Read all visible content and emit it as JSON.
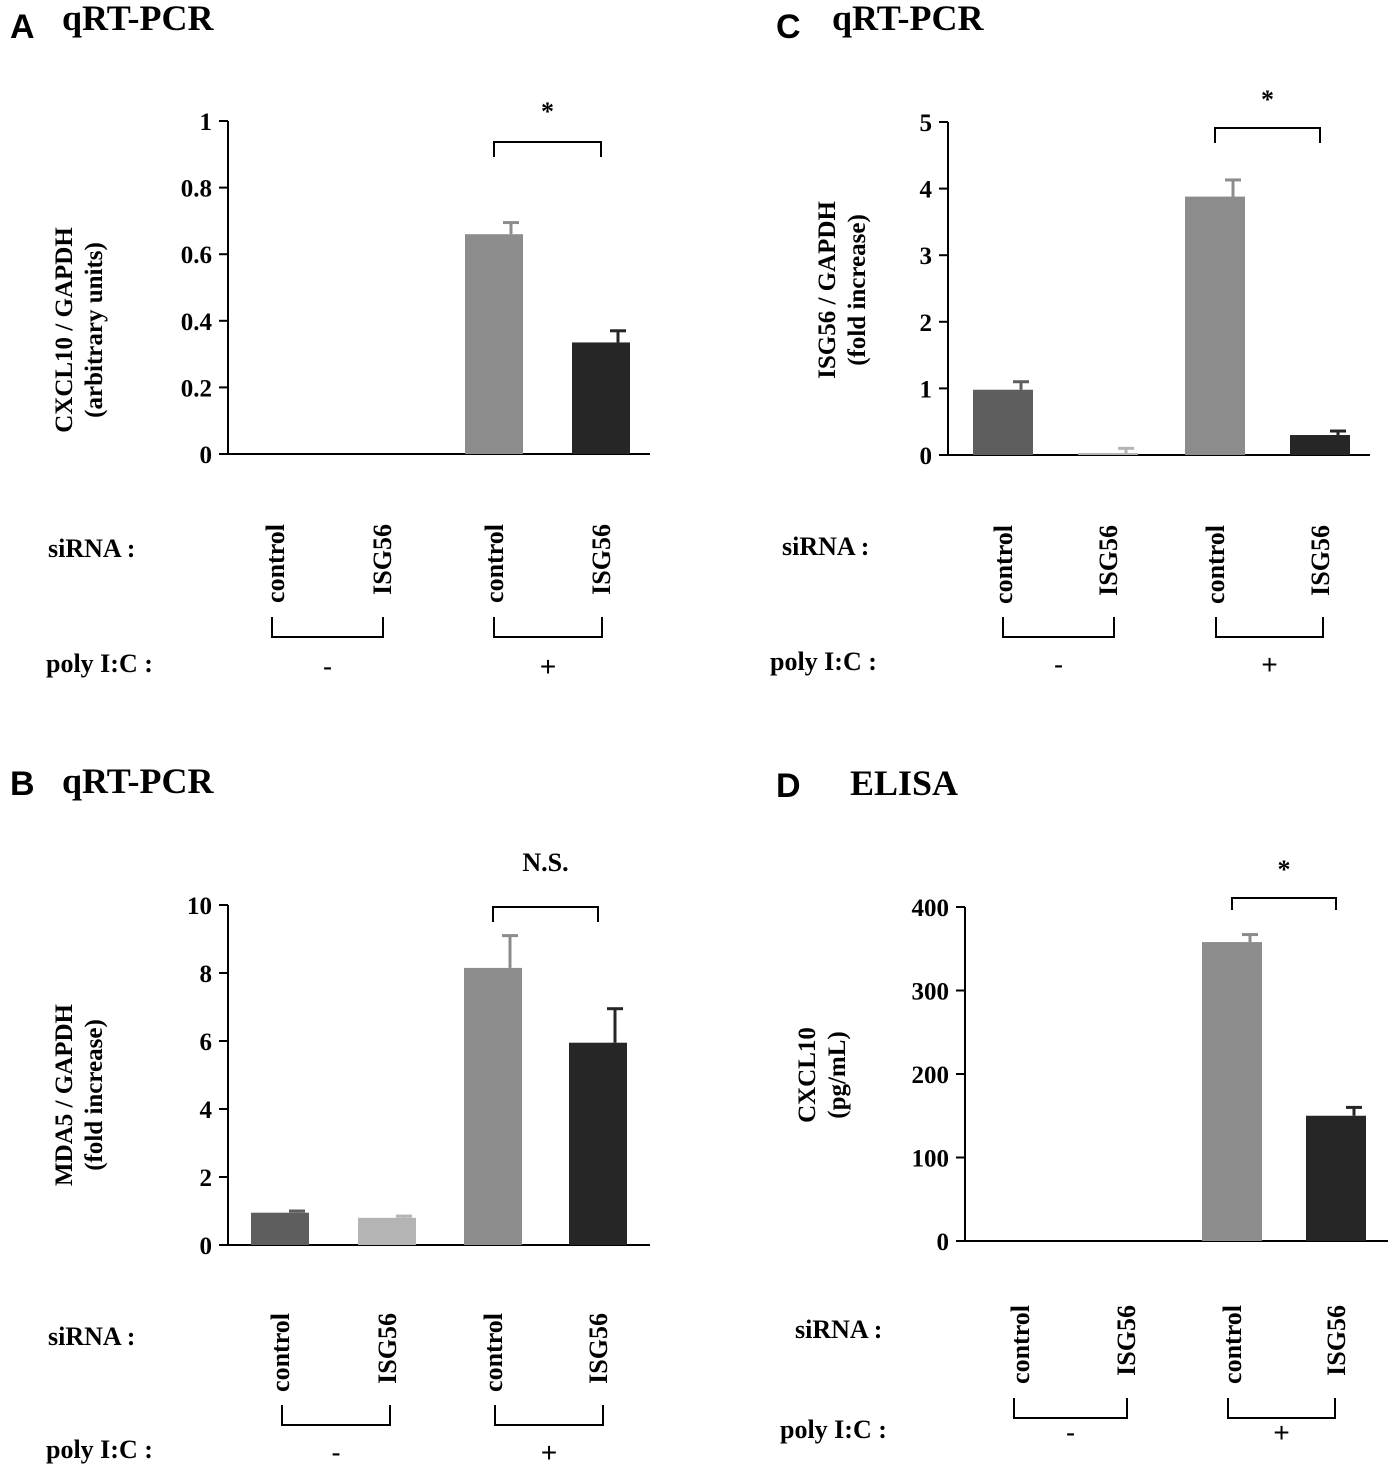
{
  "chart_data": [
    {
      "panel": "A",
      "type": "bar",
      "title": "qRT-PCR",
      "ylabel_lines": [
        "CXCL10 / GAPDH",
        "(arbitrary  units)"
      ],
      "ylim": [
        0,
        1
      ],
      "yticks": [
        0,
        0.2,
        0.4,
        0.6,
        0.8,
        1
      ],
      "ytick_labels": [
        "0",
        "0.2",
        "0.4",
        "0.6",
        "0.8",
        "1"
      ],
      "categories": [
        "control",
        "ISG56",
        "control",
        "ISG56"
      ],
      "values": [
        0,
        0,
        0.66,
        0.335
      ],
      "errors": [
        0,
        0,
        0.035,
        0.035
      ],
      "bar_colors": [
        "#5e5e5e",
        "#b4b4b4",
        "#8c8c8c",
        "#262626"
      ],
      "significance": "*",
      "row_labels": {
        "siRNA": "siRNA :",
        "poly": "poly I:C :"
      },
      "poly_groups": [
        "-",
        "+"
      ]
    },
    {
      "panel": "B",
      "type": "bar",
      "title": "qRT-PCR",
      "ylabel_lines": [
        "MDA5 / GAPDH",
        "(fold increase)"
      ],
      "ylim": [
        0,
        10
      ],
      "yticks": [
        0,
        2,
        4,
        6,
        8,
        10
      ],
      "ytick_labels": [
        "0",
        "2",
        "4",
        "6",
        "8",
        "10"
      ],
      "categories": [
        "control",
        "ISG56",
        "control",
        "ISG56"
      ],
      "values": [
        0.95,
        0.8,
        8.15,
        5.95
      ],
      "errors": [
        0.05,
        0.05,
        0.95,
        1.0
      ],
      "bar_colors": [
        "#5e5e5e",
        "#b4b4b4",
        "#8c8c8c",
        "#262626"
      ],
      "significance": "N.S.",
      "row_labels": {
        "siRNA": "siRNA :",
        "poly": "poly I:C :"
      },
      "poly_groups": [
        "-",
        "+"
      ]
    },
    {
      "panel": "C",
      "type": "bar",
      "title": "qRT-PCR",
      "ylabel_lines": [
        "ISG56 / GAPDH",
        "(fold increase)"
      ],
      "ylim": [
        0,
        5
      ],
      "yticks": [
        0,
        1,
        2,
        3,
        4,
        5
      ],
      "ytick_labels": [
        "0",
        "1",
        "2",
        "3",
        "4",
        "5"
      ],
      "categories": [
        "control",
        "ISG56",
        "control",
        "ISG56"
      ],
      "values": [
        0.98,
        0.03,
        3.88,
        0.3
      ],
      "errors": [
        0.12,
        0.07,
        0.25,
        0.06
      ],
      "bar_colors": [
        "#5e5e5e",
        "#b4b4b4",
        "#8c8c8c",
        "#262626"
      ],
      "significance": "*",
      "row_labels": {
        "siRNA": "siRNA :",
        "poly": "poly I:C :"
      },
      "poly_groups": [
        "-",
        "+"
      ]
    },
    {
      "panel": "D",
      "type": "bar",
      "title": "ELISA",
      "ylabel_lines": [
        "CXCL10",
        "(pg/mL)"
      ],
      "ylim": [
        0,
        400
      ],
      "yticks": [
        0,
        100,
        200,
        300,
        400
      ],
      "ytick_labels": [
        "0",
        "100",
        "200",
        "300",
        "400"
      ],
      "categories": [
        "control",
        "ISG56",
        "control",
        "ISG56"
      ],
      "values": [
        0,
        0,
        358,
        150
      ],
      "errors": [
        0,
        0,
        9,
        10
      ],
      "bar_colors": [
        "#5e5e5e",
        "#b4b4b4",
        "#8c8c8c",
        "#262626"
      ],
      "significance": "*",
      "row_labels": {
        "siRNA": "siRNA :",
        "poly": "poly I:C :"
      },
      "poly_groups": [
        "-",
        "+"
      ]
    }
  ]
}
